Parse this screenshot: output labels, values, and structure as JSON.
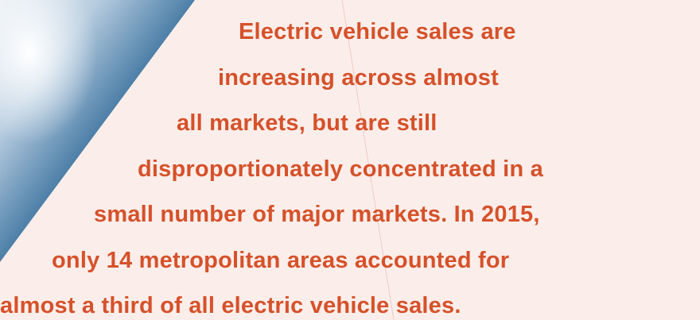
{
  "text_lines": [
    "Electric vehicle sales are",
    "increasing across almost",
    "all markets, but are still",
    "disproportionately concentrated in a",
    "small number of major markets. In 2015,",
    "only 14 metropolitan areas accounted for",
    "almost a third of all electric vehicle sales."
  ]
}
